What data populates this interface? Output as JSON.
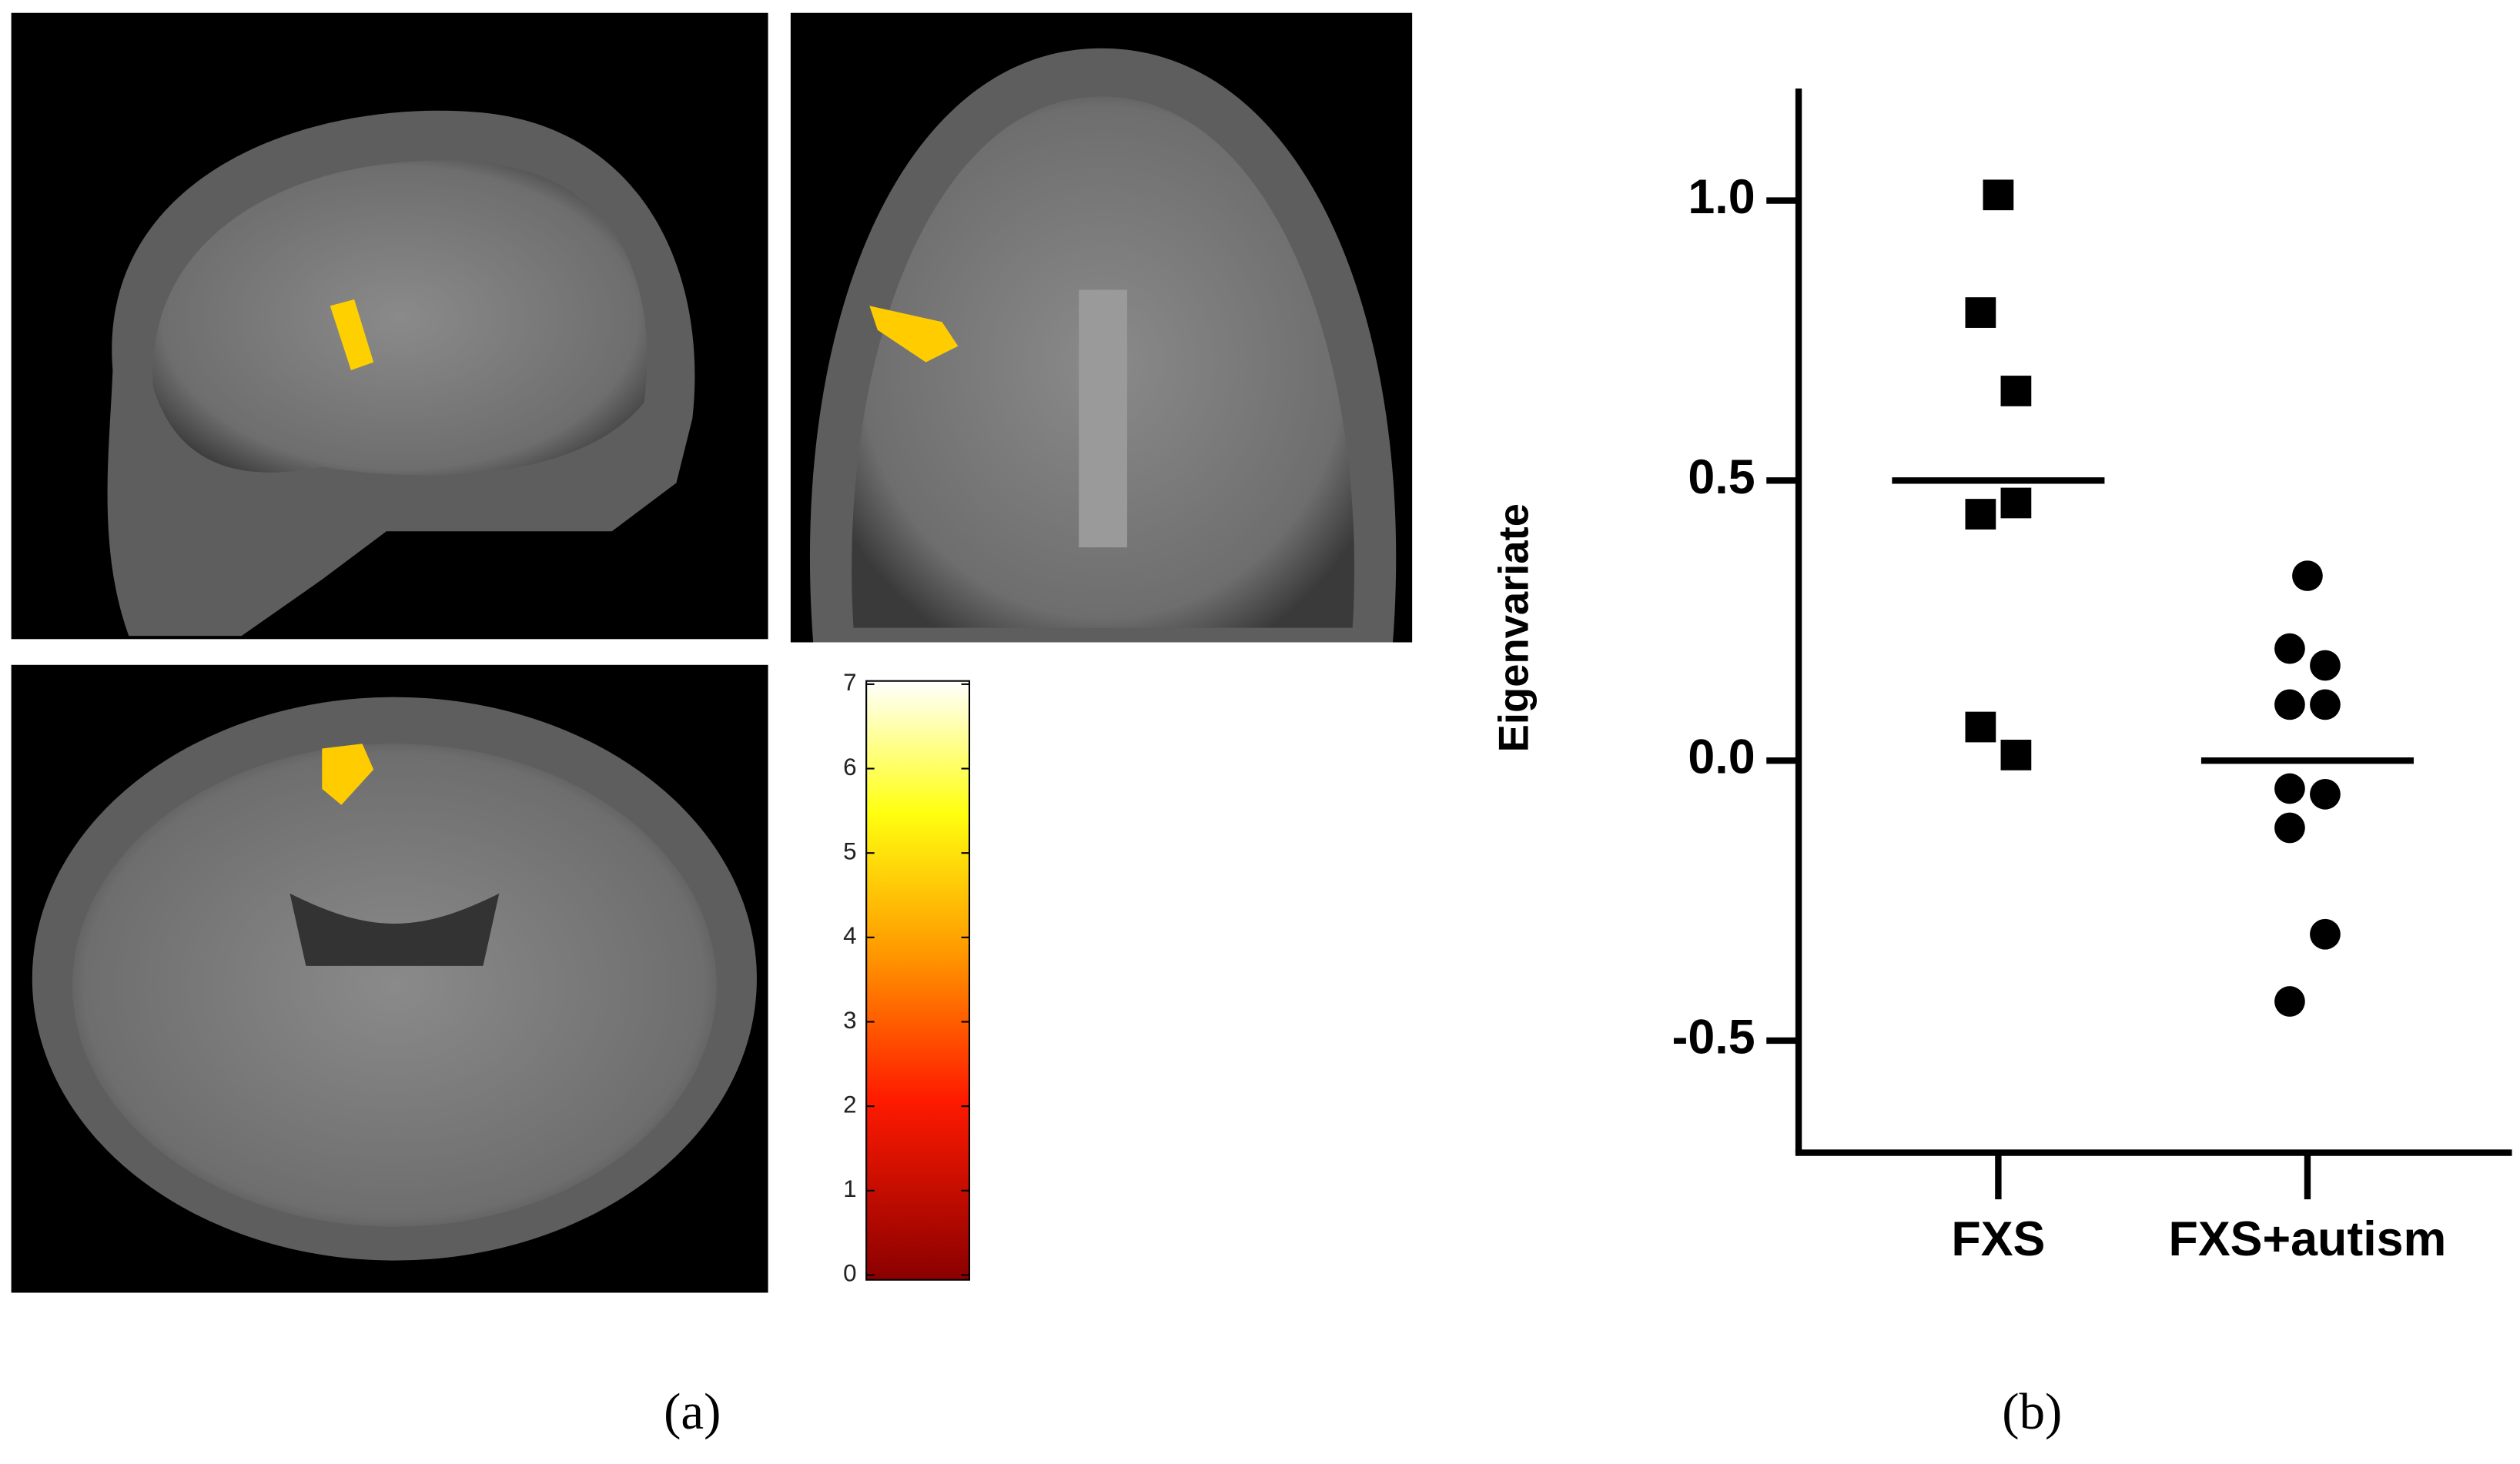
{
  "chart_data": [
    {
      "type": "colorbar",
      "caption": "(a)",
      "ylim": [
        0,
        7
      ],
      "yticks": [
        0,
        1,
        2,
        3,
        4,
        5,
        6,
        7
      ]
    },
    {
      "type": "strip",
      "caption": "(b)",
      "y_label": "Eigenvariate",
      "categories": [
        "FXS",
        "FXS+autism"
      ],
      "markers": [
        "square",
        "circle"
      ],
      "values": [
        [
          1.01,
          0.8,
          0.66,
          0.44,
          0.46,
          0.06,
          0.01
        ],
        [
          0.33,
          0.2,
          0.17,
          0.1,
          0.1,
          -0.05,
          -0.06,
          -0.12,
          -0.31,
          -0.43
        ]
      ],
      "means": [
        0.5,
        0.0
      ],
      "color": "#000000",
      "ylim": [
        -0.7,
        1.2
      ],
      "yticks": [
        {
          "value": -0.5,
          "label": "-0.5"
        },
        {
          "value": 0.0,
          "label": "0.0"
        },
        {
          "value": 0.5,
          "label": "0.5"
        },
        {
          "value": 1.0,
          "label": "1.0"
        }
      ]
    }
  ]
}
